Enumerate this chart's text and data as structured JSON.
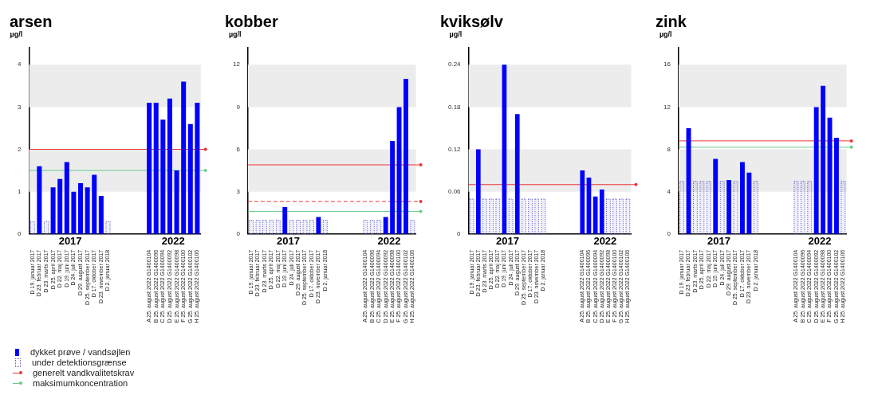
{
  "chart_data": [
    {
      "type": "bar",
      "title": "arsen",
      "ylabel": "µg/l",
      "legend": "bottom left",
      "grid": false,
      "categories": [
        "D 19. januar 2017",
        "D 23. februar 2017",
        "D 23. marts 2017",
        "D 25. april 2017",
        "D 22. maj 2017",
        "D 19. juni 2017",
        "D 24. juli 2017",
        "D 29. august 2017",
        "D 25. september 2017",
        "D 17. oktober 2017",
        "D 23. november 2017",
        "D 2. januar 2018",
        null,
        null,
        null,
        null,
        null,
        "A 25. august 2022 G1400104",
        "B 25. august 2022 G1400096",
        "C 25. august 2022 G1400094",
        "D 25. august 2022 G1400092",
        "E 25. august 2022 G1400098",
        "F 25. august 2022 G1400100",
        "G 25. august 2022 G1400102",
        "H 25. august 2022 G1400106"
      ],
      "series": [
        {
          "name": "dykket prøve / vandsøjlen",
          "color": "#0000ff",
          "values": [
            null,
            1.6,
            null,
            1.1,
            1.3,
            1.7,
            1.0,
            1.2,
            1.1,
            1.4,
            0.9,
            null,
            null,
            null,
            null,
            null,
            null,
            3.1,
            3.1,
            2.7,
            3.2,
            1.5,
            3.6,
            2.6,
            3.1
          ]
        },
        {
          "name": "under detektionsgrænse",
          "color": "#5555cc",
          "line_style": "dotted",
          "values": [
            0.3,
            null,
            0.3,
            null,
            null,
            null,
            null,
            null,
            null,
            null,
            null,
            0.3,
            null,
            null,
            null,
            null,
            null,
            null,
            null,
            null,
            null,
            null,
            null,
            null,
            null
          ]
        }
      ],
      "ylim": [
        0,
        4.4
      ],
      "yticks": [
        0,
        1,
        2,
        3,
        4
      ],
      "bands": [
        {
          "axis": "y",
          "from": 1,
          "to": 2,
          "color": "#ececec"
        },
        {
          "axis": "y",
          "from": 3,
          "to": 4,
          "color": "#ececec"
        }
      ],
      "ref_lines": [
        {
          "axis": "y",
          "value": 2,
          "label": "generelt vandkvalitetskrav",
          "color": "#ee3333"
        },
        {
          "axis": "y",
          "value": 1.5,
          "label": "maksimumkoncentration",
          "color": "#66cc88"
        }
      ],
      "annotations": [
        "2017",
        "2022"
      ]
    },
    {
      "type": "bar",
      "title": "kobber",
      "ylabel": "µg/l",
      "grid": false,
      "categories": [
        "D 19. januar 2017",
        "D 23. februar 2017",
        "D 23. marts 2017",
        "D 25. april 2017",
        "D 22. maj 2017",
        "D 19. juni 2017",
        "D 24. juli 2017",
        "D 29. august 2017",
        "D 25. september 2017",
        "D 17. oktober 2017",
        "D 23. november 2017",
        "D 2. januar 2018",
        null,
        null,
        null,
        null,
        null,
        "A 25. august 2022 G1400104",
        "B 25. august 2022 G1400096",
        "C 25. august 2022 G1400094",
        "D 25. august 2022 G1400092",
        "E 25. august 2022 G1400098",
        "F 25. august 2022 G1400100",
        "G 25. august 2022 G1400102",
        "H 25. august 2022 G1400106"
      ],
      "series": [
        {
          "name": "dykket prøve / vandsøjlen",
          "color": "#0000ff",
          "values": [
            null,
            null,
            null,
            null,
            null,
            1.9,
            null,
            null,
            null,
            null,
            1.2,
            null,
            null,
            null,
            null,
            null,
            null,
            null,
            null,
            null,
            1.2,
            6.6,
            9.0,
            11.0,
            null
          ]
        },
        {
          "name": "under detektionsgrænse",
          "color": "#5555cc",
          "line_style": "dotted",
          "values": [
            1,
            1,
            1,
            1,
            1,
            null,
            1,
            1,
            1,
            1,
            null,
            1,
            null,
            null,
            null,
            null,
            null,
            1,
            1,
            1,
            null,
            null,
            null,
            null,
            1
          ]
        }
      ],
      "ylim": [
        0,
        13.2
      ],
      "yticks": [
        0,
        3,
        6,
        9,
        12
      ],
      "bands": [
        {
          "axis": "y",
          "from": 3,
          "to": 6,
          "color": "#ececec"
        },
        {
          "axis": "y",
          "from": 9,
          "to": 12,
          "color": "#ececec"
        }
      ],
      "ref_lines": [
        {
          "axis": "y",
          "value": 4.9,
          "color": "#ee3333"
        },
        {
          "axis": "y",
          "value": 2.3,
          "color": "#ee3333",
          "line_style": "dashed"
        },
        {
          "axis": "y",
          "value": 1.6,
          "color": "#66cc88"
        }
      ],
      "annotations": [
        "2017",
        "2022"
      ]
    },
    {
      "type": "bar",
      "title": "kviksølv",
      "ylabel": "µg/l",
      "grid": false,
      "categories": [
        "D 19. januar 2017",
        "D 23. februar 2017",
        "D 23. marts 2017",
        "D 25. april 2017",
        "D 22. maj 2017",
        "D 19. juni 2017",
        "D 24. juli 2017",
        "D 29. august 2017",
        "D 25. september 2017",
        "D 17. oktober 2017",
        "D 23. november 2017",
        "D 2. januar 2018",
        null,
        null,
        null,
        null,
        null,
        "A 25. august 2022 G1400104",
        "B 25. august 2022 G1400096",
        "C 25. august 2022 G1400094",
        "D 25. august 2022 G1400092",
        "E 25. august 2022 G1400098",
        "F 25. august 2022 G1400100",
        "G 25. august 2022 G1400102",
        "H 25. august 2022 G1400106"
      ],
      "series": [
        {
          "name": "dykket prøve / vandsøjlen",
          "color": "#0000ff",
          "values": [
            null,
            0.12,
            null,
            null,
            null,
            0.24,
            null,
            0.17,
            null,
            null,
            null,
            null,
            null,
            null,
            null,
            null,
            null,
            0.09,
            0.08,
            0.053,
            0.063,
            null,
            null,
            null,
            null
          ]
        },
        {
          "name": "under detektionsgrænse",
          "color": "#5555cc",
          "line_style": "dotted",
          "values": [
            0.05,
            null,
            0.05,
            0.05,
            0.05,
            null,
            0.05,
            null,
            0.05,
            0.05,
            0.05,
            0.05,
            null,
            null,
            null,
            null,
            null,
            null,
            null,
            null,
            null,
            0.05,
            0.05,
            0.05,
            0.05
          ]
        }
      ],
      "ylim": [
        0,
        0.264
      ],
      "yticks": [
        0,
        0.06,
        0.12,
        0.18,
        0.24
      ],
      "bands": [
        {
          "axis": "y",
          "from": 0.06,
          "to": 0.12,
          "color": "#ececec"
        },
        {
          "axis": "y",
          "from": 0.18,
          "to": 0.24,
          "color": "#ececec"
        }
      ],
      "ref_lines": [
        {
          "axis": "y",
          "value": 0.07,
          "color": "#ee3333"
        }
      ],
      "annotations": [
        "2017",
        "2022"
      ]
    },
    {
      "type": "bar",
      "title": "zink",
      "ylabel": "µg/l",
      "grid": false,
      "categories": [
        "D 19. januar 2017",
        "D 23. februar 2017",
        "D 23. marts 2017",
        "D 25. april 2017",
        "D 22. maj 2017",
        "D 19. juni 2017",
        "D 24. juli 2017",
        "D 29. august 2017",
        "D 25. september 2017",
        "D 17. oktober 2017",
        "D 23. november 2017",
        "D 2. januar 2018",
        null,
        null,
        null,
        null,
        null,
        "A 25. august 2022 G1400104",
        "B 25. august 2022 G1400096",
        "C 25. august 2022 G1400094",
        "D 25. august 2022 G1400092",
        "E 25. august 2022 G1400098",
        "F 25. august 2022 G1400100",
        "G 25. august 2022 G1400102",
        "H 25. august 2022 G1400106"
      ],
      "series": [
        {
          "name": "dykket prøve / vandsøjlen",
          "color": "#0000ff",
          "values": [
            null,
            10,
            null,
            null,
            null,
            7.1,
            null,
            5.1,
            null,
            6.8,
            5.8,
            null,
            null,
            null,
            null,
            null,
            null,
            null,
            null,
            null,
            12,
            14,
            11,
            9.1,
            null
          ]
        },
        {
          "name": "under detektionsgrænse",
          "color": "#5555cc",
          "line_style": "dotted",
          "values": [
            5,
            null,
            5,
            5,
            5,
            null,
            5,
            null,
            5,
            null,
            null,
            5,
            null,
            null,
            null,
            null,
            null,
            5,
            5,
            5,
            null,
            null,
            null,
            null,
            5
          ]
        }
      ],
      "ylim": [
        0,
        17.6
      ],
      "yticks": [
        0,
        4,
        8,
        12,
        16
      ],
      "bands": [
        {
          "axis": "y",
          "from": 4,
          "to": 8,
          "color": "#ececec"
        },
        {
          "axis": "y",
          "from": 12,
          "to": 16,
          "color": "#ececec"
        }
      ],
      "ref_lines": [
        {
          "axis": "y",
          "value": 8.8,
          "color": "#ee3333"
        },
        {
          "axis": "y",
          "value": 8.2,
          "color": "#66cc88"
        }
      ],
      "annotations": [
        "2017",
        "2022"
      ]
    }
  ]
}
